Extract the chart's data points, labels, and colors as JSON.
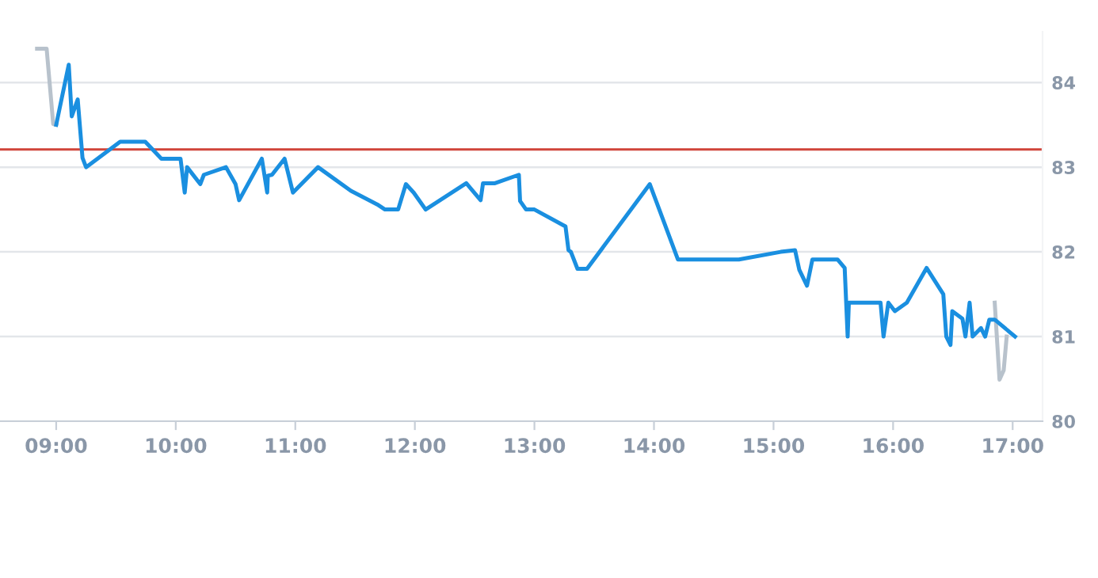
{
  "chart_data": {
    "type": "line",
    "series": [
      {
        "color": "#b8c2cc",
        "x": [
          8.84,
          8.92,
          8.975,
          9.0
        ],
        "values": [
          84.4,
          84.4,
          83.51,
          83.5
        ]
      },
      {
        "color": "#b8c2cc",
        "x": [
          16.85,
          16.89,
          16.925,
          16.95
        ],
        "values": [
          81.4,
          80.49,
          80.6,
          81.0
        ]
      },
      {
        "color": "#1a8fe0",
        "x": [
          9.0,
          9.105,
          9.13,
          9.18,
          9.22,
          9.25,
          9.535,
          9.745,
          9.88,
          10.04,
          10.075,
          10.095,
          10.205,
          10.235,
          10.42,
          10.5,
          10.53,
          10.72,
          10.765,
          10.77,
          10.805,
          10.91,
          10.98,
          11.19,
          11.465,
          11.685,
          11.75,
          11.86,
          11.925,
          11.99,
          12.09,
          12.43,
          12.55,
          12.57,
          12.67,
          12.87,
          12.88,
          12.93,
          13.0,
          13.26,
          13.285,
          13.305,
          13.36,
          13.44,
          13.965,
          14.2,
          14.71,
          15.06,
          15.18,
          15.215,
          15.28,
          15.325,
          15.535,
          15.595,
          15.62,
          15.63,
          15.895,
          15.92,
          15.96,
          16.015,
          16.115,
          16.28,
          16.42,
          16.445,
          16.48,
          16.495,
          16.58,
          16.605,
          16.64,
          16.665,
          16.735,
          16.77,
          16.805,
          16.85,
          17.02
        ],
        "values": [
          83.5,
          84.21,
          83.6,
          83.8,
          83.11,
          83.0,
          83.3,
          83.3,
          83.1,
          83.1,
          82.7,
          83.0,
          82.8,
          82.91,
          83.0,
          82.8,
          82.61,
          83.1,
          82.7,
          82.9,
          82.91,
          83.1,
          82.7,
          83.0,
          82.72,
          82.56,
          82.5,
          82.5,
          82.8,
          82.7,
          82.5,
          82.81,
          82.61,
          82.81,
          82.81,
          82.91,
          82.6,
          82.5,
          82.5,
          82.3,
          82.02,
          82.0,
          81.8,
          81.8,
          82.8,
          81.91,
          81.91,
          82.0,
          82.02,
          81.79,
          81.6,
          81.91,
          81.91,
          81.81,
          81.0,
          81.4,
          81.4,
          81.0,
          81.4,
          81.3,
          81.4,
          81.81,
          81.5,
          81.0,
          80.9,
          81.3,
          81.21,
          81.0,
          81.4,
          81.0,
          81.1,
          81.0,
          81.2,
          81.2,
          81.0
        ]
      }
    ],
    "ref_lines": [
      {
        "axis": "y",
        "value": 83.21,
        "color": "#d0453a"
      }
    ],
    "xlim": [
      8.53,
      17.25
    ],
    "ylim": [
      80,
      84.6
    ],
    "xticks": [
      {
        "value": 9,
        "label": "09:00"
      },
      {
        "value": 10,
        "label": "10:00"
      },
      {
        "value": 11,
        "label": "11:00"
      },
      {
        "value": 12,
        "label": "12:00"
      },
      {
        "value": 13,
        "label": "13:00"
      },
      {
        "value": 14,
        "label": "14:00"
      },
      {
        "value": 15,
        "label": "15:00"
      },
      {
        "value": 16,
        "label": "16:00"
      },
      {
        "value": 17,
        "label": "17:00"
      }
    ],
    "yticks": [
      80,
      81,
      82,
      83,
      84
    ],
    "grid": "y",
    "marker": "none",
    "line_style": "solid"
  }
}
